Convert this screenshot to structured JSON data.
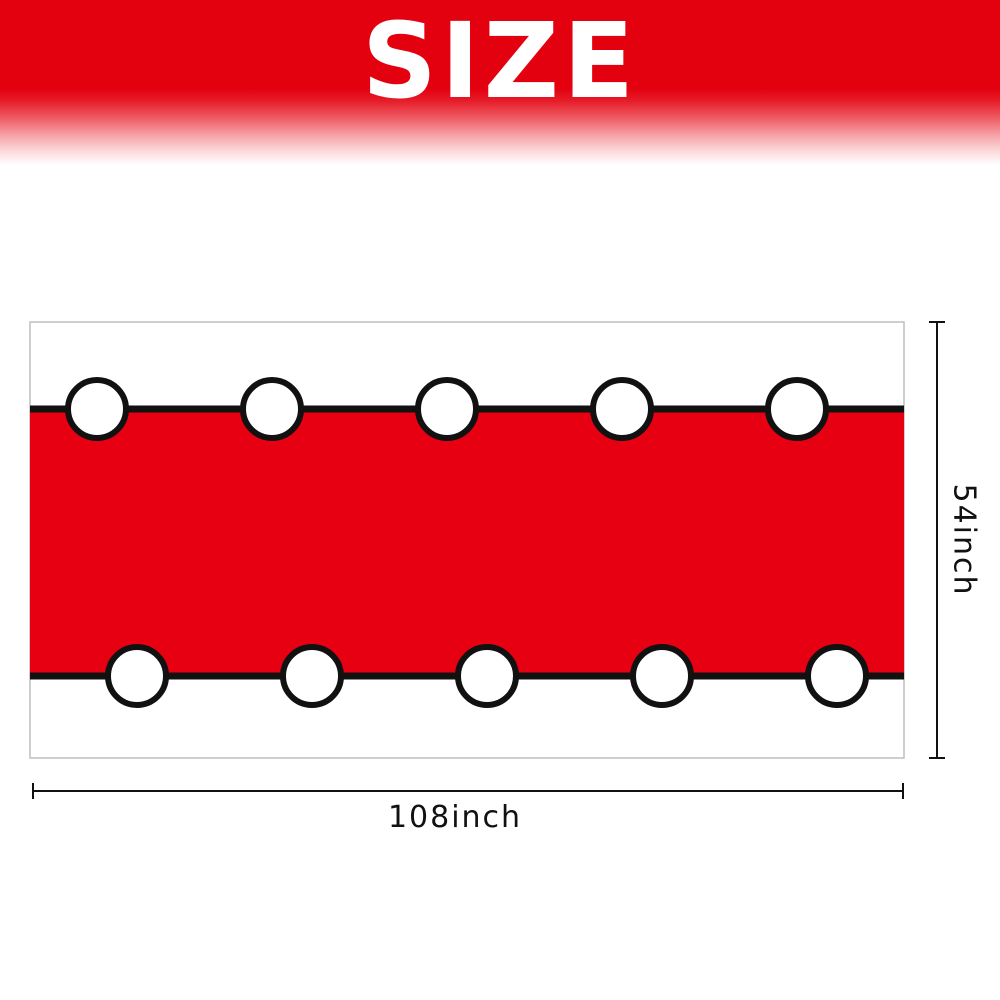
{
  "title": "SIZE",
  "dimensions": {
    "width_label": "108inch",
    "height_label": "54inch"
  },
  "colors": {
    "header_red": "#e3000f",
    "banner_red": "#e60012",
    "outline": "#111111",
    "dot_fill": "#ffffff"
  },
  "banner": {
    "top_row_dots": 5,
    "bottom_row_dots": 5
  }
}
